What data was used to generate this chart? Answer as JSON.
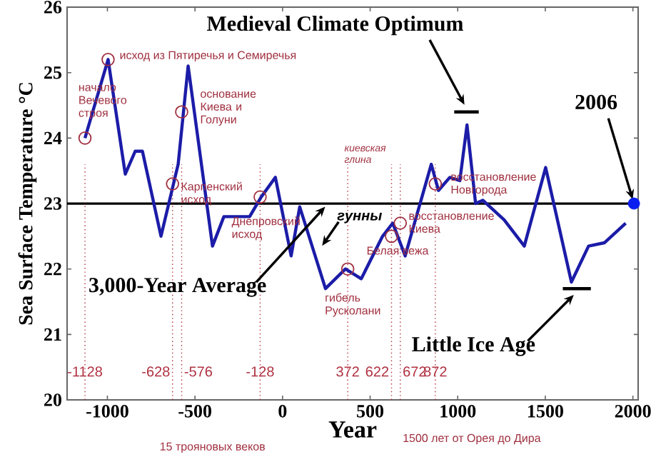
{
  "chart_data": {
    "type": "line",
    "xlabel": "Year",
    "ylabel": "Sea Surface Temperature °C",
    "xlim": [
      -1230,
      2030
    ],
    "ylim": [
      20,
      26
    ],
    "xticks": [
      -1000,
      -500,
      0,
      500,
      1000,
      1500,
      2000
    ],
    "yticks": [
      20,
      21,
      22,
      23,
      24,
      25,
      26
    ],
    "series": [
      {
        "color": "#1c1ca8",
        "x": [
          -1128,
          -996,
          -898,
          -841,
          -800,
          -694,
          -596,
          -539,
          -400,
          -335,
          -188,
          -122,
          -41,
          49,
          98,
          245,
          359,
          449,
          571,
          629,
          700,
          849,
          890,
          955,
          1012,
          1053,
          1102,
          1143,
          1265,
          1380,
          1502,
          1649,
          1747,
          1837,
          1959
        ],
        "values": [
          24.0,
          25.2,
          23.45,
          23.8,
          23.8,
          22.5,
          23.6,
          25.1,
          22.35,
          22.8,
          22.8,
          23.1,
          23.4,
          22.2,
          22.95,
          21.7,
          22.0,
          21.85,
          22.5,
          22.7,
          22.2,
          23.6,
          23.2,
          23.4,
          23.35,
          24.2,
          23.0,
          23.05,
          22.75,
          22.35,
          23.55,
          21.8,
          22.35,
          22.4,
          22.7
        ]
      },
      {
        "type": "line",
        "color": "#000000",
        "x": [
          980,
          1120
        ],
        "values": [
          24.4,
          24.4
        ]
      },
      {
        "type": "line",
        "color": "#000000",
        "x": [
          1600,
          1760
        ],
        "values": [
          21.7,
          21.7
        ]
      },
      {
        "type": "scatter",
        "color": "#0a1ef0",
        "x": [
          2006
        ],
        "values": [
          23.0
        ]
      }
    ],
    "ref_lines": [
      {
        "axis": "y",
        "value": 23.0,
        "color": "#000000",
        "line_style": "solid"
      },
      {
        "axis": "x",
        "value": -1128,
        "label": "-1128",
        "color": "#b03040",
        "line_style": "dotted"
      },
      {
        "axis": "x",
        "value": -628,
        "label": "-628",
        "color": "#b03040",
        "line_style": "dotted"
      },
      {
        "axis": "x",
        "value": -576,
        "label": "-576",
        "color": "#b03040",
        "line_style": "dotted"
      },
      {
        "axis": "x",
        "value": -128,
        "label": "-128",
        "color": "#b03040",
        "line_style": "dotted"
      },
      {
        "axis": "x",
        "value": 372,
        "label": "372",
        "color": "#b03040",
        "line_style": "dotted"
      },
      {
        "axis": "x",
        "value": 622,
        "label": "622",
        "color": "#b03040",
        "line_style": "dotted"
      },
      {
        "axis": "x",
        "value": 672,
        "label": "672",
        "color": "#b03040",
        "line_style": "dotted"
      },
      {
        "axis": "x",
        "value": 872,
        "label": "872",
        "color": "#b03040",
        "line_style": "dotted"
      }
    ],
    "annotations": [
      "Medieval Climate Optimum",
      {
        "text": "2006",
        "x": 2006,
        "y": 23.0
      },
      {
        "text": "3,000-Year Average",
        "x": 260,
        "y": 23.0
      },
      "Little Ice Age",
      {
        "text": "гунны",
        "x": 212,
        "y": 22.3
      },
      {
        "text": "начало Вечевого строя",
        "x": -1128,
        "y": 24.0
      },
      {
        "text": "исход из Пятиречья и Семиречья",
        "x": -996,
        "y": 25.2
      },
      {
        "text": "основание Киева и Голуни",
        "x": -576,
        "y": 24.4
      },
      {
        "text": "Карпенский исход",
        "x": -628,
        "y": 23.3
      },
      {
        "text": "Днепровский исход",
        "x": -128,
        "y": 23.1
      },
      {
        "text": "гибель Русколани",
        "x": 372,
        "y": 22.0
      },
      {
        "text": "Белая вежа",
        "x": 622,
        "y": 22.5
      },
      {
        "text": "восстановление Киева",
        "x": 672,
        "y": 22.7
      },
      {
        "text": "восстановление Новгорода",
        "x": 872,
        "y": 23.3
      },
      "киевская глина",
      "15 трояновых веков",
      "1500 лет от Орея до Дира"
    ]
  }
}
